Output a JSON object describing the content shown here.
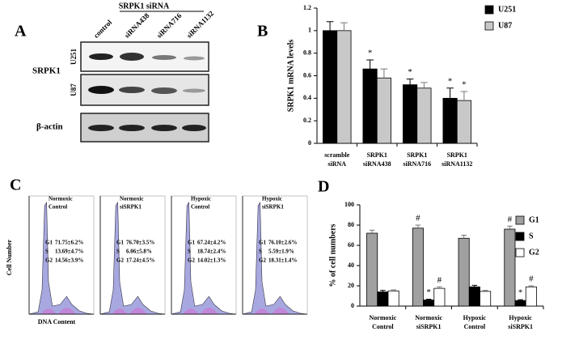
{
  "panel_a": {
    "label": "A",
    "group_label": "SRPK1 siRNA",
    "lanes": [
      "control",
      "siRNA438",
      "siRNA716",
      "siRNA1132"
    ],
    "protein": "SRPK1",
    "cell_lines": [
      "U251",
      "U87"
    ],
    "loading_control": "β-actin"
  },
  "panel_c": {
    "label": "C",
    "y_label": "Cell Number",
    "x_label": "DNA Content",
    "plots": [
      {
        "title": [
          "Normoxic",
          "Control"
        ],
        "rows": [
          {
            "phase": "G1",
            "value": "71.75±6.2%"
          },
          {
            "phase": "S",
            "value": "13.69±4.7%"
          },
          {
            "phase": "G2",
            "value": "14.56±3.9%"
          }
        ]
      },
      {
        "title": [
          "Normoxic",
          "siSRPK1"
        ],
        "rows": [
          {
            "phase": "G1",
            "value": "76.70±3.5%"
          },
          {
            "phase": "S",
            "value": "6.06±5.8%"
          },
          {
            "phase": "G2",
            "value": "17.24±4.5%"
          }
        ]
      },
      {
        "title": [
          "Hypoxic",
          "Control"
        ],
        "rows": [
          {
            "phase": "G1",
            "value": "67.24±4.2%"
          },
          {
            "phase": "S",
            "value": "18.74±2.4%"
          },
          {
            "phase": "G2",
            "value": "14.02±1.3%"
          }
        ]
      },
      {
        "title": [
          "Hypoxic",
          "siSRPK1"
        ],
        "rows": [
          {
            "phase": "G1",
            "value": "76.10±2.6%"
          },
          {
            "phase": "S",
            "value": "5.59±1.9%"
          },
          {
            "phase": "G2",
            "value": "18.31±1.4%"
          }
        ]
      }
    ]
  },
  "chart_data": [
    {
      "type": "bar",
      "panel_label": "B",
      "y_label": "SRPK1 mRNA levels",
      "categories": [
        [
          "scramble",
          "siRNA"
        ],
        [
          "SRPK1",
          "siRNA438"
        ],
        [
          "SRPK1",
          "siRNA716"
        ],
        [
          "SRPK1",
          "siRNA1132"
        ]
      ],
      "series": [
        {
          "name": "U251",
          "color": "#000000",
          "values": [
            1,
            0.66,
            0.52,
            0.4
          ],
          "errors": [
            0.08,
            0.08,
            0.05,
            0.09
          ],
          "markers": [
            null,
            "*",
            "*",
            "*"
          ]
        },
        {
          "name": "U87",
          "color": "#c8c8c8",
          "values": [
            1,
            0.58,
            0.49,
            0.38
          ],
          "errors": [
            0.07,
            0.08,
            0.05,
            0.08
          ],
          "markers": [
            null,
            null,
            null,
            "*"
          ]
        }
      ],
      "ylim": [
        0,
        1.2
      ],
      "yticks": [
        0,
        0.2,
        0.4,
        0.6,
        0.8,
        1,
        1.2
      ],
      "legend": "top-right"
    },
    {
      "type": "bar",
      "panel_label": "D",
      "y_label": "% of cell numbers",
      "categories": [
        [
          "Normoxic",
          "Control"
        ],
        [
          "Normoxic",
          "siSRPK1"
        ],
        [
          "Hypoxic",
          "Control"
        ],
        [
          "Hypoxic",
          "siSRPK1"
        ]
      ],
      "series": [
        {
          "name": "G1",
          "color": "#a0a0a0",
          "values": [
            72,
            77,
            67,
            76
          ],
          "errors": [
            3,
            3,
            3,
            3
          ],
          "markers": [
            null,
            "#",
            null,
            "#"
          ]
        },
        {
          "name": "S",
          "color": "#000000",
          "values": [
            14,
            6,
            19,
            5.5
          ],
          "errors": [
            1.5,
            0.8,
            1.5,
            0.8
          ],
          "markers": [
            null,
            "*",
            null,
            "*"
          ]
        },
        {
          "name": "G2",
          "color": "#ffffff",
          "values": [
            15,
            17.5,
            14.5,
            19
          ],
          "errors": [
            1,
            1.5,
            1,
            1
          ],
          "markers": [
            null,
            "#",
            null,
            "#"
          ]
        }
      ],
      "ylim": [
        0,
        100
      ],
      "yticks": [
        0,
        20,
        40,
        60,
        80,
        100
      ],
      "legend": "top-right"
    }
  ]
}
